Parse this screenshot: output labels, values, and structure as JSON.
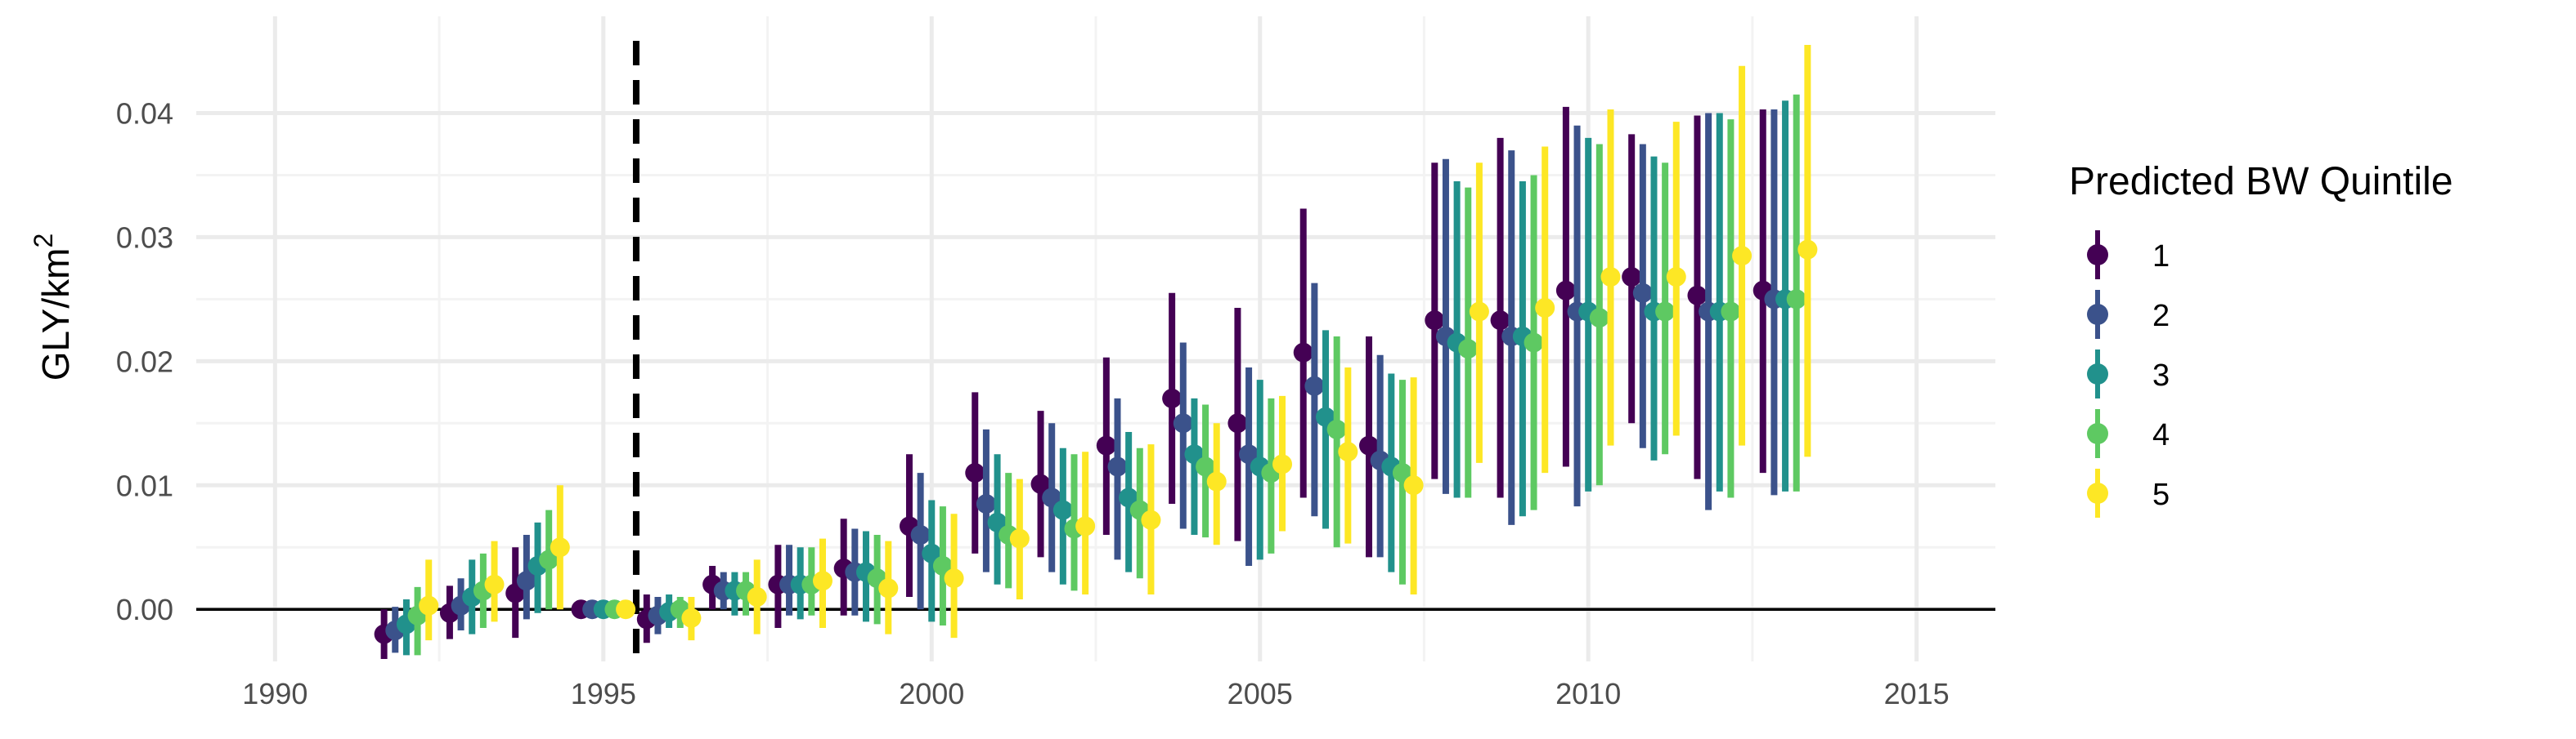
{
  "chart_data": {
    "type": "scatter",
    "subtype": "point-range (dodged)",
    "title": "",
    "xlabel": "",
    "ylabel": "GLY/km",
    "ylabel_superscript": "2",
    "xlim": [
      1988.8,
      2016.2
    ],
    "ylim": [
      -0.0042,
      0.0478
    ],
    "x_ticks": [
      1990,
      1995,
      2000,
      2005,
      2010,
      2015
    ],
    "x_tick_labels": [
      "1990",
      "1995",
      "2000",
      "2005",
      "2010",
      "2015"
    ],
    "y_ticks": [
      0.0,
      0.01,
      0.02,
      0.03,
      0.04
    ],
    "y_tick_labels": [
      "0.00",
      "0.01",
      "0.02",
      "0.03",
      "0.04"
    ],
    "grid": true,
    "reference_lines": {
      "horizontal_at_y": 0,
      "vertical_dashed_at_x": 1995.5
    },
    "legend": {
      "title": "Predicted BW Quintile",
      "placement": "right",
      "entries": [
        "1",
        "2",
        "3",
        "4",
        "5"
      ]
    },
    "colors": [
      "#440154",
      "#3b528b",
      "#21918c",
      "#5ec962",
      "#fde725"
    ],
    "years": [
      1992,
      1993,
      1994,
      1995,
      1996,
      1997,
      1998,
      1999,
      2000,
      2001,
      2002,
      2003,
      2004,
      2005,
      2006,
      2007,
      2008,
      2009,
      2010,
      2011,
      2012,
      2013
    ],
    "series": [
      {
        "name": "1",
        "estimate": [
          -0.002,
          -0.0003,
          0.0013,
          0.0,
          -0.0008,
          0.002,
          0.002,
          0.0033,
          0.0067,
          0.011,
          0.0101,
          0.0132,
          0.017,
          0.015,
          0.0207,
          0.0132,
          0.0233,
          0.0233,
          0.0257,
          0.0268,
          0.0253,
          0.0257
        ],
        "lower": [
          -0.004,
          -0.0024,
          -0.0023,
          0.0,
          -0.0027,
          0.0,
          -0.0015,
          -0.0005,
          0.001,
          0.0045,
          0.0042,
          0.006,
          0.0085,
          0.0055,
          0.009,
          0.0042,
          0.0105,
          0.009,
          0.0115,
          0.015,
          0.0105,
          0.011
        ],
        "upper": [
          0.0,
          0.0019,
          0.005,
          0.0,
          0.0012,
          0.0035,
          0.0052,
          0.0073,
          0.0125,
          0.0175,
          0.016,
          0.0203,
          0.0255,
          0.0243,
          0.0323,
          0.022,
          0.036,
          0.038,
          0.0405,
          0.0383,
          0.0398,
          0.0403
        ]
      },
      {
        "name": "2",
        "estimate": [
          -0.0017,
          0.0003,
          0.0023,
          0.0,
          -0.0005,
          0.0015,
          0.002,
          0.003,
          0.006,
          0.0085,
          0.009,
          0.0115,
          0.015,
          0.0125,
          0.018,
          0.012,
          0.022,
          0.022,
          0.024,
          0.0255,
          0.024,
          0.025
        ],
        "lower": [
          -0.0035,
          -0.0017,
          -0.0008,
          0.0,
          -0.002,
          0.0,
          -0.0005,
          -0.0005,
          0.0,
          0.003,
          0.003,
          0.004,
          0.0065,
          0.0035,
          0.0075,
          0.0042,
          0.0093,
          0.0068,
          0.0083,
          0.013,
          0.008,
          0.0092
        ],
        "upper": [
          0.0002,
          0.0025,
          0.006,
          0.0,
          0.001,
          0.003,
          0.0052,
          0.0065,
          0.011,
          0.0145,
          0.015,
          0.017,
          0.0215,
          0.0195,
          0.0263,
          0.0205,
          0.0363,
          0.037,
          0.039,
          0.0375,
          0.04,
          0.0403
        ]
      },
      {
        "name": "3",
        "estimate": [
          -0.0012,
          0.001,
          0.0035,
          0.0,
          -0.0002,
          0.0015,
          0.002,
          0.003,
          0.0045,
          0.007,
          0.008,
          0.009,
          0.0125,
          0.0115,
          0.0155,
          0.0115,
          0.0215,
          0.022,
          0.024,
          0.024,
          0.024,
          0.025
        ],
        "lower": [
          -0.0037,
          -0.002,
          -0.0003,
          0.0,
          -0.0015,
          -0.0005,
          -0.0008,
          -0.001,
          -0.001,
          0.002,
          0.002,
          0.003,
          0.006,
          0.004,
          0.0065,
          0.003,
          0.009,
          0.0075,
          0.0095,
          0.012,
          0.0095,
          0.0095
        ],
        "upper": [
          0.0008,
          0.004,
          0.007,
          0.0,
          0.0012,
          0.003,
          0.005,
          0.0063,
          0.0088,
          0.0125,
          0.013,
          0.0143,
          0.017,
          0.0185,
          0.0225,
          0.019,
          0.0345,
          0.0345,
          0.038,
          0.0365,
          0.04,
          0.041
        ]
      },
      {
        "name": "4",
        "estimate": [
          -0.0005,
          0.0015,
          0.004,
          0.0,
          0.0,
          0.0015,
          0.002,
          0.0025,
          0.0035,
          0.006,
          0.0065,
          0.008,
          0.0115,
          0.011,
          0.0145,
          0.011,
          0.021,
          0.0215,
          0.0235,
          0.024,
          0.024,
          0.025
        ],
        "lower": [
          -0.0037,
          -0.0015,
          0.0,
          0.0,
          -0.0015,
          -0.0005,
          -0.0005,
          -0.0012,
          -0.0013,
          0.0017,
          0.0015,
          0.0025,
          0.0058,
          0.0045,
          0.005,
          0.002,
          0.009,
          0.008,
          0.01,
          0.0125,
          0.009,
          0.0095
        ],
        "upper": [
          0.0018,
          0.0045,
          0.008,
          0.0,
          0.001,
          0.003,
          0.005,
          0.006,
          0.0083,
          0.011,
          0.0125,
          0.013,
          0.0165,
          0.017,
          0.022,
          0.0185,
          0.034,
          0.035,
          0.0375,
          0.036,
          0.0395,
          0.0415
        ]
      },
      {
        "name": "5",
        "estimate": [
          0.0003,
          0.002,
          0.005,
          0.0,
          -0.0007,
          0.001,
          0.0023,
          0.0017,
          0.0025,
          0.0057,
          0.0067,
          0.0072,
          0.0103,
          0.0117,
          0.0127,
          0.01,
          0.024,
          0.0243,
          0.0268,
          0.0268,
          0.0285,
          0.029
        ],
        "lower": [
          -0.0025,
          -0.001,
          0.0,
          0.0,
          -0.0025,
          -0.002,
          -0.0015,
          -0.002,
          -0.0023,
          0.0008,
          0.0012,
          0.0012,
          0.0052,
          0.0063,
          0.0053,
          0.0012,
          0.0118,
          0.011,
          0.0132,
          0.014,
          0.0132,
          0.0123
        ],
        "upper": [
          0.004,
          0.0055,
          0.01,
          0.0,
          0.001,
          0.004,
          0.0057,
          0.0055,
          0.0077,
          0.0105,
          0.0127,
          0.0133,
          0.015,
          0.0172,
          0.0195,
          0.0187,
          0.036,
          0.0373,
          0.0403,
          0.0393,
          0.0438,
          0.0455
        ]
      }
    ]
  }
}
